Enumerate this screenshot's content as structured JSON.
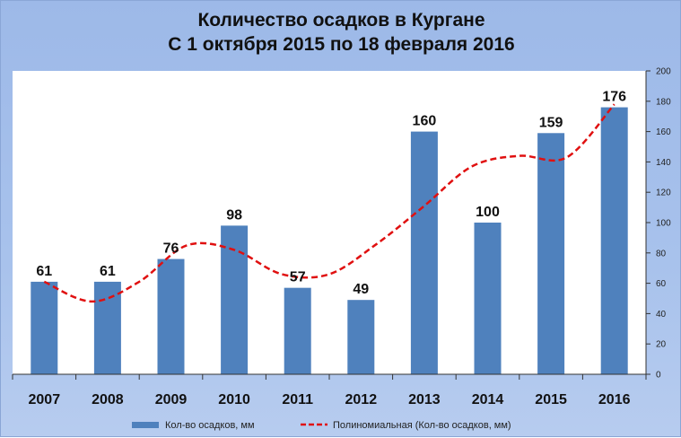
{
  "title_line1": "Количество осадков в Кургане",
  "title_line2": "С 1 октября 2015 по 18 февраля 2016",
  "chart_data": {
    "type": "bar",
    "categories": [
      "2007",
      "2008",
      "2009",
      "2010",
      "2011",
      "2012",
      "2013",
      "2014",
      "2015",
      "2016"
    ],
    "series": [
      {
        "name": "Кол-во осадков, мм",
        "values": [
          61,
          61,
          76,
          98,
          57,
          49,
          160,
          100,
          159,
          176
        ],
        "color": "#4f81bd"
      }
    ],
    "trendline": {
      "name": "Полиномиальная  (Кол-во осадков, мм)",
      "color": "#e01010",
      "style": "dashed",
      "values": [
        61,
        48,
        61,
        85,
        82,
        66,
        66,
        86,
        111,
        137,
        144,
        143,
        178
      ]
    },
    "ylim": [
      0,
      200
    ],
    "yticks": [
      0,
      20,
      40,
      60,
      80,
      100,
      120,
      140,
      160,
      180,
      200
    ],
    "y_axis_side": "right",
    "grid": false,
    "legend_position": "bottom",
    "data_labels": true
  }
}
